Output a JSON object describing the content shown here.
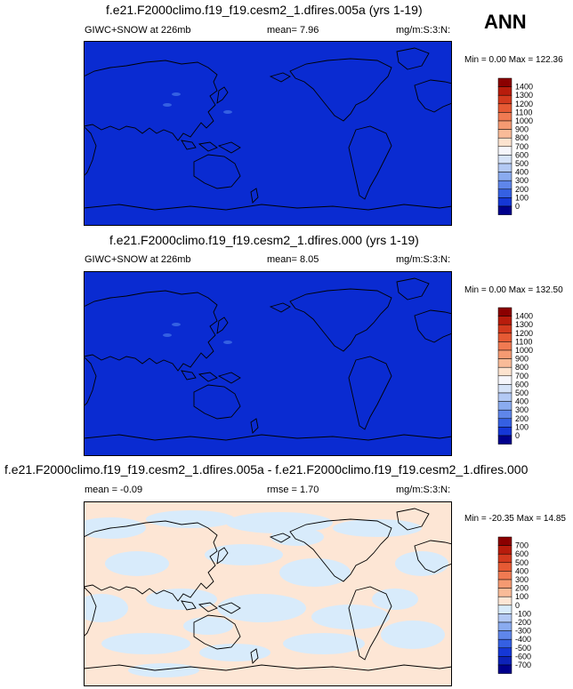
{
  "season": "ANN",
  "colors": {
    "deep_blue": "#0a2bd1",
    "land_line": "#000000",
    "diff_light_blue": "#d8ebfb",
    "diff_light_peach": "#fde6d5"
  },
  "panels": [
    {
      "title": "f.e21.F2000climo.f19_f19.cesm2_1.dfires.005a (yrs 1-19)",
      "variable": "GIWC+SNOW at 226mb",
      "stat1": "mean=  7.96",
      "units": "mg/m:S:3:N:",
      "minmax": "Min =  0.00 Max = 122.36"
    },
    {
      "title": "f.e21.F2000climo.f19_f19.cesm2_1.dfires.000 (yrs 1-19)",
      "variable": "GIWC+SNOW at 226mb",
      "stat1": "mean=  8.05",
      "units": "mg/m:S:3:N:",
      "minmax": "Min =  0.00 Max = 132.50"
    },
    {
      "title": "f.e21.F2000climo.f19_f19.cesm2_1.dfires.005a - f.e21.F2000climo.f19_f19.cesm2_1.dfires.000",
      "stat1": "mean = -0.09",
      "stat2": "rmse =  1.70",
      "units": "mg/m:S:3:N:",
      "minmax": "Min = -20.35 Max =  14.85"
    }
  ],
  "colorbars": [
    {
      "labels": [
        "1400",
        "1300",
        "1200",
        "1100",
        "1000",
        "900",
        "800",
        "700",
        "600",
        "500",
        "400",
        "300",
        "200",
        "100",
        "0"
      ],
      "colors": [
        "#8b0000",
        "#b81c0c",
        "#d33a1e",
        "#e65a34",
        "#f07a52",
        "#f59a72",
        "#f9bb98",
        "#fde3cf",
        "#f6f6fb",
        "#d6e3f8",
        "#b3c9f4",
        "#8aabef",
        "#5f86ea",
        "#3560e2",
        "#1537d6",
        "#00008c"
      ]
    },
    {
      "labels": [
        "1400",
        "1300",
        "1200",
        "1100",
        "1000",
        "900",
        "800",
        "700",
        "600",
        "500",
        "400",
        "300",
        "200",
        "100",
        "0"
      ],
      "colors": [
        "#8b0000",
        "#b81c0c",
        "#d33a1e",
        "#e65a34",
        "#f07a52",
        "#f59a72",
        "#f9bb98",
        "#fde3cf",
        "#f6f6fb",
        "#d6e3f8",
        "#b3c9f4",
        "#8aabef",
        "#5f86ea",
        "#3560e2",
        "#1537d6",
        "#00008c"
      ]
    },
    {
      "labels": [
        "700",
        "600",
        "500",
        "400",
        "300",
        "200",
        "100",
        "0",
        "-100",
        "-200",
        "-300",
        "-400",
        "-500",
        "-600",
        "-700"
      ],
      "colors": [
        "#8b0000",
        "#b81c0c",
        "#d33a1e",
        "#e65a34",
        "#f07a52",
        "#f59a72",
        "#f9bb98",
        "#fde6d5",
        "#d8ebfb",
        "#b3c9f4",
        "#8aabef",
        "#5f86ea",
        "#3560e2",
        "#1537d6",
        "#0d22b8",
        "#00008c"
      ]
    }
  ]
}
